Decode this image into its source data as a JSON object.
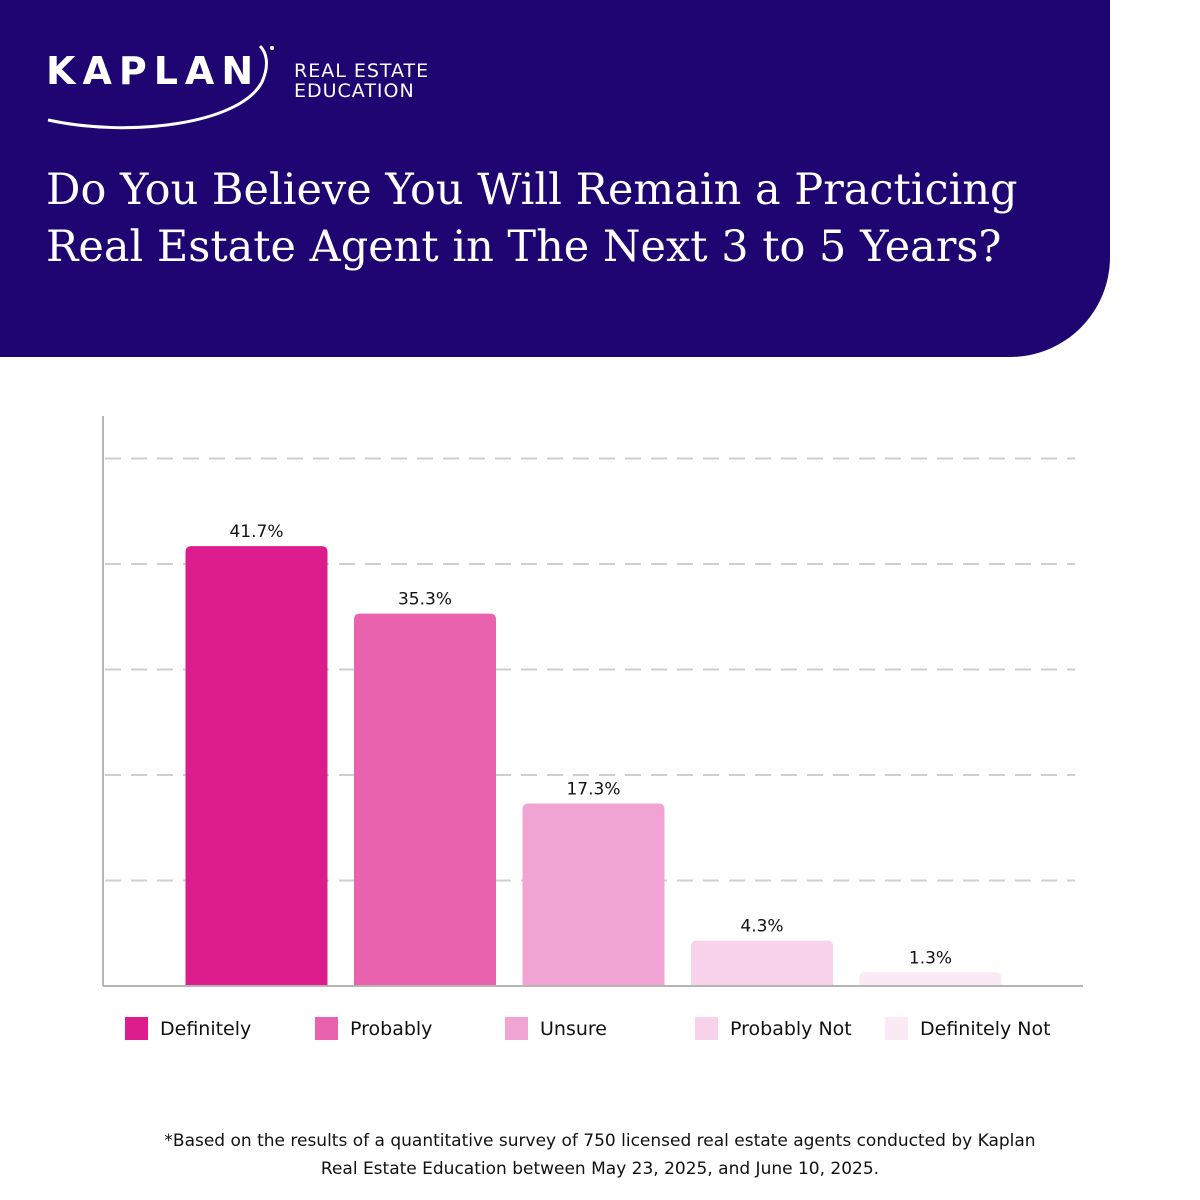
{
  "header": {
    "logo_text": "KAPLAN",
    "logo_subtext_line1": "REAL ESTATE",
    "logo_subtext_line2": "EDUCATION",
    "background_color": "#1e0572"
  },
  "chart_data": {
    "type": "bar",
    "title": "Do You Believe You Will Remain a Practicing Real Estate Agent in The Next 3 to 5 Years?",
    "categories": [
      "Definitely",
      "Probably",
      "Unsure",
      "Probably Not",
      "Definitely Not"
    ],
    "values": [
      41.7,
      35.3,
      17.3,
      4.3,
      1.3
    ],
    "value_labels": [
      "41.7%",
      "35.3%",
      "17.3%",
      "4.3%",
      "1.3%"
    ],
    "colors": [
      "#dd1c8e",
      "#e862ae",
      "#f1a4d3",
      "#f7d2ea",
      "#fbe9f5"
    ],
    "xlabel": "",
    "ylabel": "",
    "ylim": [
      0,
      50
    ],
    "grid": true,
    "legend_position": "bottom"
  },
  "footnote": {
    "line1": "*Based on the results of a quantitative survey of 750 licensed real estate agents conducted by Kaplan",
    "line2": "Real Estate Education between May 23, 2025, and June 10, 2025."
  }
}
